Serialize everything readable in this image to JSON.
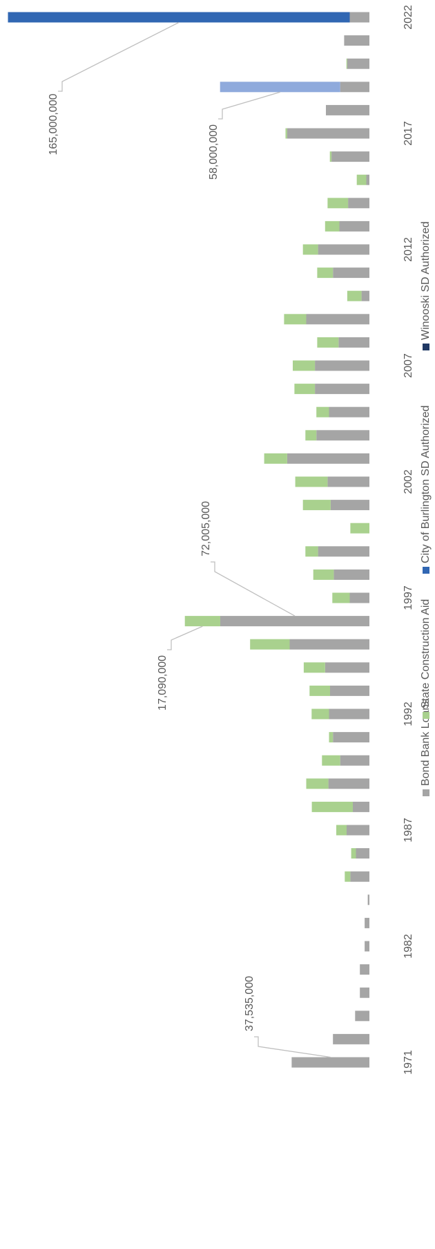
{
  "chart_data": {
    "type": "stacked_bar",
    "orientation": "rotated",
    "categories": [
      "1971",
      null,
      null,
      null,
      null,
      "1982",
      null,
      null,
      null,
      null,
      "1987",
      null,
      null,
      null,
      null,
      "1992",
      null,
      null,
      null,
      null,
      "1997",
      null,
      null,
      null,
      null,
      "2002",
      null,
      null,
      null,
      null,
      "2007",
      null,
      null,
      null,
      null,
      "2012",
      null,
      null,
      null,
      null,
      "2017",
      null,
      null,
      null,
      null,
      "2022"
    ],
    "ylim": [
      0,
      175000000
    ],
    "series": [
      {
        "name": "Bond Bank Loans",
        "color": "#a5a5a5",
        "values": [
          37535000,
          17600000,
          6900000,
          4600000,
          4600000,
          2300000,
          2300000,
          800000,
          9200000,
          6500000,
          11000000,
          8000000,
          19800000,
          14100000,
          17600000,
          19500000,
          19000000,
          21400000,
          38500000,
          72005000,
          9500000,
          17200000,
          24800000,
          0,
          18700000,
          20200000,
          39700000,
          25600000,
          19500000,
          26300000,
          26300000,
          14900000,
          30500000,
          3800000,
          17600000,
          24800000,
          14500000,
          10300000,
          1500000,
          18300000,
          39700000,
          21000000,
          14100000,
          10700000,
          12200000,
          9500000
        ],
        "value_labels": [
          "37,535,000",
          null,
          null,
          null,
          null,
          null,
          null,
          null,
          null,
          null,
          null,
          null,
          null,
          null,
          null,
          null,
          null,
          null,
          null,
          "72,005,000",
          null,
          null,
          null,
          null,
          null,
          null,
          null,
          null,
          null,
          null,
          null,
          null,
          null,
          null,
          null,
          null,
          null,
          null,
          null,
          null,
          null,
          null,
          null,
          null,
          null,
          null
        ]
      },
      {
        "name": "State Construction Aid",
        "color": "#a9d18e",
        "values": [
          0,
          0,
          0,
          0,
          0,
          0,
          0,
          0,
          2700000,
          2300000,
          5000000,
          19800000,
          10700000,
          8800000,
          1900000,
          8400000,
          9900000,
          10300000,
          19100000,
          17090000,
          8400000,
          9900000,
          6100000,
          9200000,
          13400000,
          15600000,
          11100000,
          5300000,
          6100000,
          9900000,
          10700000,
          10300000,
          10700000,
          6900000,
          7600000,
          7300000,
          6900000,
          9900000,
          4600000,
          800000,
          800000,
          0,
          0,
          400000,
          0,
          0
        ],
        "value_labels": [
          null,
          null,
          null,
          null,
          null,
          null,
          null,
          null,
          null,
          null,
          null,
          null,
          null,
          null,
          null,
          null,
          null,
          null,
          null,
          "17,090,000",
          null,
          null,
          null,
          null,
          null,
          null,
          null,
          null,
          null,
          null,
          null,
          null,
          null,
          null,
          null,
          null,
          null,
          null,
          null,
          null,
          null,
          null,
          null,
          null,
          null,
          null
        ]
      },
      {
        "name": "City of Burlington SD Authorized",
        "color": "#3167b3",
        "point_colors": [
          null,
          null,
          null,
          null,
          null,
          null,
          null,
          null,
          null,
          null,
          null,
          null,
          null,
          null,
          null,
          null,
          null,
          null,
          null,
          null,
          null,
          null,
          null,
          null,
          null,
          null,
          null,
          null,
          null,
          null,
          null,
          null,
          null,
          null,
          null,
          null,
          null,
          null,
          null,
          null,
          null,
          null,
          "#8faadc",
          null,
          null,
          null
        ],
        "values": [
          0,
          0,
          0,
          0,
          0,
          0,
          0,
          0,
          0,
          0,
          0,
          0,
          0,
          0,
          0,
          0,
          0,
          0,
          0,
          0,
          0,
          0,
          0,
          0,
          0,
          0,
          0,
          0,
          0,
          0,
          0,
          0,
          0,
          0,
          0,
          0,
          0,
          0,
          0,
          0,
          0,
          0,
          58000000,
          0,
          0,
          165000000
        ],
        "value_labels": [
          null,
          null,
          null,
          null,
          null,
          null,
          null,
          null,
          null,
          null,
          null,
          null,
          null,
          null,
          null,
          null,
          null,
          null,
          null,
          null,
          null,
          null,
          null,
          null,
          null,
          null,
          null,
          null,
          null,
          null,
          null,
          null,
          null,
          null,
          null,
          null,
          null,
          null,
          null,
          null,
          null,
          null,
          "58,000,000",
          null,
          null,
          "165,000,000"
        ]
      },
      {
        "name": "Winooski SD Authorized",
        "color": "#203864",
        "values": [
          0,
          0,
          0,
          0,
          0,
          0,
          0,
          0,
          0,
          0,
          0,
          0,
          0,
          0,
          0,
          0,
          0,
          0,
          0,
          0,
          0,
          0,
          0,
          0,
          0,
          0,
          0,
          0,
          0,
          0,
          0,
          0,
          0,
          0,
          0,
          0,
          0,
          0,
          0,
          0,
          0,
          0,
          0,
          0,
          0,
          0
        ]
      }
    ],
    "legend": "right"
  }
}
